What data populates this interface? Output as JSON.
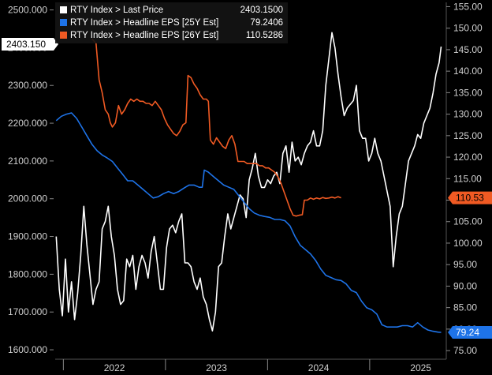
{
  "chart_data": {
    "type": "line",
    "x_labels": [
      "2022",
      "2023",
      "2024",
      "2025"
    ],
    "left_axis": {
      "ticks": [
        "1600.000",
        "1700.000",
        "1800.000",
        "1900.000",
        "2000.000",
        "2100.000",
        "2200.000",
        "2300.000",
        "2400.000",
        "2500.000"
      ],
      "range": [
        1575,
        2520
      ]
    },
    "right_axis": {
      "ticks": [
        "75.00",
        "80.00",
        "85.00",
        "90.00",
        "95.00",
        "100.00",
        "105.00",
        "110.00",
        "115.00",
        "120.00",
        "125.00",
        "130.00",
        "135.00",
        "140.00",
        "145.00",
        "150.00",
        "155.00"
      ],
      "range": [
        73,
        156
      ]
    },
    "x_range": [
      2021.92,
      2025.75
    ],
    "legend": [
      {
        "label": "RTY Index > Last Price",
        "value": "2403.1500",
        "color": "#ffffff"
      },
      {
        "label": "RTY Index > Headline EPS [25Y Est]",
        "value": "79.2406",
        "color": "#1e73e8"
      },
      {
        "label": "RTY Index > Headline EPS [26Y Est]",
        "value": "110.5286",
        "color": "#f05a23"
      }
    ],
    "flags": {
      "price": "2403.150",
      "eps25": "79.24",
      "eps26": "110.53"
    },
    "series": [
      {
        "axis": "left",
        "color": "#ffffff",
        "points": [
          [
            2021.93,
            1900
          ],
          [
            2021.96,
            1760
          ],
          [
            2021.99,
            1690
          ],
          [
            2022.02,
            1840
          ],
          [
            2022.05,
            1700
          ],
          [
            2022.08,
            1780
          ],
          [
            2022.11,
            1680
          ],
          [
            2022.14,
            1750
          ],
          [
            2022.17,
            1850
          ],
          [
            2022.2,
            1980
          ],
          [
            2022.23,
            1880
          ],
          [
            2022.26,
            1800
          ],
          [
            2022.29,
            1720
          ],
          [
            2022.32,
            1760
          ],
          [
            2022.35,
            1780
          ],
          [
            2022.38,
            1920
          ],
          [
            2022.41,
            1940
          ],
          [
            2022.44,
            1980
          ],
          [
            2022.47,
            1900
          ],
          [
            2022.5,
            1850
          ],
          [
            2022.53,
            1760
          ],
          [
            2022.56,
            1720
          ],
          [
            2022.59,
            1730
          ],
          [
            2022.62,
            1840
          ],
          [
            2022.65,
            1820
          ],
          [
            2022.68,
            1850
          ],
          [
            2022.71,
            1760
          ],
          [
            2022.74,
            1820
          ],
          [
            2022.77,
            1850
          ],
          [
            2022.8,
            1830
          ],
          [
            2022.83,
            1790
          ],
          [
            2022.86,
            1860
          ],
          [
            2022.89,
            1900
          ],
          [
            2022.92,
            1830
          ],
          [
            2022.95,
            1760
          ],
          [
            2022.98,
            1760
          ],
          [
            2023.01,
            1870
          ],
          [
            2023.04,
            1920
          ],
          [
            2023.07,
            1930
          ],
          [
            2023.1,
            1910
          ],
          [
            2023.13,
            1940
          ],
          [
            2023.16,
            1960
          ],
          [
            2023.19,
            1830
          ],
          [
            2023.22,
            1830
          ],
          [
            2023.25,
            1820
          ],
          [
            2023.28,
            1780
          ],
          [
            2023.31,
            1760
          ],
          [
            2023.34,
            1790
          ],
          [
            2023.37,
            1740
          ],
          [
            2023.4,
            1720
          ],
          [
            2023.43,
            1680
          ],
          [
            2023.46,
            1650
          ],
          [
            2023.49,
            1700
          ],
          [
            2023.52,
            1820
          ],
          [
            2023.55,
            1830
          ],
          [
            2023.58,
            1900
          ],
          [
            2023.61,
            1960
          ],
          [
            2023.64,
            1920
          ],
          [
            2023.67,
            1950
          ],
          [
            2023.7,
            1980
          ],
          [
            2023.73,
            2010
          ],
          [
            2023.76,
            2000
          ],
          [
            2023.79,
            1950
          ],
          [
            2023.82,
            2050
          ],
          [
            2023.85,
            2080
          ],
          [
            2023.88,
            2120
          ],
          [
            2023.91,
            2060
          ],
          [
            2023.94,
            2030
          ],
          [
            2023.97,
            2030
          ],
          [
            2024.0,
            2050
          ],
          [
            2024.03,
            2040
          ],
          [
            2024.06,
            2060
          ],
          [
            2024.09,
            2070
          ],
          [
            2024.12,
            2040
          ],
          [
            2024.15,
            2120
          ],
          [
            2024.18,
            2140
          ],
          [
            2024.21,
            2070
          ],
          [
            2024.24,
            2150
          ],
          [
            2024.27,
            2100
          ],
          [
            2024.3,
            2110
          ],
          [
            2024.33,
            2090
          ],
          [
            2024.36,
            2120
          ],
          [
            2024.39,
            2140
          ],
          [
            2024.42,
            2150
          ],
          [
            2024.45,
            2180
          ],
          [
            2024.48,
            2140
          ],
          [
            2024.51,
            2140
          ],
          [
            2024.54,
            2180
          ],
          [
            2024.57,
            2300
          ],
          [
            2024.6,
            2370
          ],
          [
            2024.63,
            2440
          ],
          [
            2024.66,
            2400
          ],
          [
            2024.69,
            2330
          ],
          [
            2024.72,
            2270
          ],
          [
            2024.75,
            2220
          ],
          [
            2024.78,
            2240
          ],
          [
            2024.81,
            2250
          ],
          [
            2024.84,
            2260
          ],
          [
            2024.87,
            2300
          ],
          [
            2024.9,
            2180
          ],
          [
            2024.93,
            2160
          ],
          [
            2024.96,
            2160
          ],
          [
            2024.99,
            2100
          ],
          [
            2025.02,
            2120
          ],
          [
            2025.05,
            2160
          ],
          [
            2025.08,
            2120
          ],
          [
            2025.11,
            2100
          ],
          [
            2025.14,
            2060
          ],
          [
            2025.17,
            2020
          ],
          [
            2025.2,
            1980
          ],
          [
            2025.23,
            1820
          ],
          [
            2025.26,
            1900
          ],
          [
            2025.29,
            1960
          ],
          [
            2025.32,
            1980
          ],
          [
            2025.35,
            2040
          ],
          [
            2025.38,
            2100
          ],
          [
            2025.41,
            2120
          ],
          [
            2025.44,
            2140
          ],
          [
            2025.47,
            2170
          ],
          [
            2025.5,
            2160
          ],
          [
            2025.53,
            2200
          ],
          [
            2025.56,
            2220
          ],
          [
            2025.59,
            2240
          ],
          [
            2025.62,
            2280
          ],
          [
            2025.65,
            2330
          ],
          [
            2025.68,
            2360
          ],
          [
            2025.7,
            2403
          ]
        ]
      },
      {
        "axis": "right",
        "color": "#1e73e8",
        "points": [
          [
            2021.93,
            128.5
          ],
          [
            2021.98,
            129.5
          ],
          [
            2022.03,
            130
          ],
          [
            2022.08,
            130.3
          ],
          [
            2022.13,
            129
          ],
          [
            2022.18,
            127
          ],
          [
            2022.23,
            125
          ],
          [
            2022.28,
            123
          ],
          [
            2022.33,
            121.5
          ],
          [
            2022.38,
            120.5
          ],
          [
            2022.43,
            119.8
          ],
          [
            2022.48,
            119
          ],
          [
            2022.53,
            117.5
          ],
          [
            2022.58,
            116
          ],
          [
            2022.63,
            114.5
          ],
          [
            2022.68,
            114.5
          ],
          [
            2022.73,
            113.5
          ],
          [
            2022.78,
            112.5
          ],
          [
            2022.83,
            111.5
          ],
          [
            2022.88,
            110.5
          ],
          [
            2022.93,
            110.8
          ],
          [
            2022.98,
            111.5
          ],
          [
            2023.03,
            112
          ],
          [
            2023.08,
            111.5
          ],
          [
            2023.13,
            112
          ],
          [
            2023.18,
            112.8
          ],
          [
            2023.23,
            113.5
          ],
          [
            2023.28,
            113.5
          ],
          [
            2023.33,
            113
          ],
          [
            2023.36,
            113
          ],
          [
            2023.38,
            117
          ],
          [
            2023.42,
            116.5
          ],
          [
            2023.47,
            115.5
          ],
          [
            2023.52,
            114.5
          ],
          [
            2023.57,
            113.5
          ],
          [
            2023.62,
            113
          ],
          [
            2023.67,
            112.5
          ],
          [
            2023.72,
            111
          ],
          [
            2023.77,
            109.5
          ],
          [
            2023.82,
            108
          ],
          [
            2023.87,
            107
          ],
          [
            2023.92,
            106.5
          ],
          [
            2023.97,
            106.2
          ],
          [
            2024.02,
            106
          ],
          [
            2024.07,
            105.5
          ],
          [
            2024.12,
            105.5
          ],
          [
            2024.17,
            105.2
          ],
          [
            2024.22,
            104
          ],
          [
            2024.27,
            101.5
          ],
          [
            2024.32,
            99.5
          ],
          [
            2024.37,
            98.5
          ],
          [
            2024.42,
            97.5
          ],
          [
            2024.47,
            96
          ],
          [
            2024.52,
            94
          ],
          [
            2024.57,
            92.5
          ],
          [
            2024.62,
            92
          ],
          [
            2024.67,
            91.5
          ],
          [
            2024.72,
            91.3
          ],
          [
            2024.77,
            90.5
          ],
          [
            2024.82,
            89
          ],
          [
            2024.87,
            88.5
          ],
          [
            2024.92,
            86.5
          ],
          [
            2024.97,
            85
          ],
          [
            2025.02,
            84.5
          ],
          [
            2025.07,
            83.5
          ],
          [
            2025.12,
            81
          ],
          [
            2025.17,
            80.5
          ],
          [
            2025.22,
            80.5
          ],
          [
            2025.27,
            80.5
          ],
          [
            2025.32,
            80.8
          ],
          [
            2025.37,
            80.8
          ],
          [
            2025.42,
            80.5
          ],
          [
            2025.47,
            81.5
          ],
          [
            2025.52,
            80.5
          ],
          [
            2025.57,
            79.8
          ],
          [
            2025.62,
            79.5
          ],
          [
            2025.67,
            79.3
          ],
          [
            2025.7,
            79.24
          ]
        ]
      },
      {
        "axis": "right",
        "color": "#f05a23",
        "points": [
          [
            2022.28,
            147.5
          ],
          [
            2022.32,
            146.5
          ],
          [
            2022.35,
            138
          ],
          [
            2022.38,
            135
          ],
          [
            2022.41,
            131
          ],
          [
            2022.44,
            130
          ],
          [
            2022.46,
            128
          ],
          [
            2022.48,
            127
          ],
          [
            2022.51,
            128
          ],
          [
            2022.54,
            132
          ],
          [
            2022.57,
            130
          ],
          [
            2022.6,
            131
          ],
          [
            2022.63,
            132.5
          ],
          [
            2022.66,
            133.5
          ],
          [
            2022.69,
            133
          ],
          [
            2022.72,
            133.5
          ],
          [
            2022.75,
            133
          ],
          [
            2022.78,
            133
          ],
          [
            2022.81,
            132.5
          ],
          [
            2022.84,
            132.5
          ],
          [
            2022.87,
            132
          ],
          [
            2022.9,
            133
          ],
          [
            2022.93,
            132
          ],
          [
            2022.96,
            131
          ],
          [
            2022.99,
            129
          ],
          [
            2023.02,
            127.5
          ],
          [
            2023.05,
            126.5
          ],
          [
            2023.08,
            125.5
          ],
          [
            2023.11,
            125
          ],
          [
            2023.14,
            126
          ],
          [
            2023.17,
            127.5
          ],
          [
            2023.2,
            128
          ],
          [
            2023.22,
            139
          ],
          [
            2023.25,
            138.5
          ],
          [
            2023.28,
            137
          ],
          [
            2023.31,
            136
          ],
          [
            2023.34,
            134.5
          ],
          [
            2023.37,
            133.5
          ],
          [
            2023.4,
            133.5
          ],
          [
            2023.42,
            133
          ],
          [
            2023.44,
            124
          ],
          [
            2023.47,
            123
          ],
          [
            2023.5,
            124.5
          ],
          [
            2023.53,
            123.5
          ],
          [
            2023.56,
            122.5
          ],
          [
            2023.59,
            122
          ],
          [
            2023.62,
            124
          ],
          [
            2023.65,
            125
          ],
          [
            2023.68,
            123
          ],
          [
            2023.71,
            119
          ],
          [
            2023.74,
            119
          ],
          [
            2023.77,
            119
          ],
          [
            2023.8,
            118.5
          ],
          [
            2023.83,
            118.5
          ],
          [
            2023.86,
            118.5
          ],
          [
            2023.89,
            118.5
          ],
          [
            2023.92,
            118
          ],
          [
            2023.95,
            118
          ],
          [
            2023.98,
            117.5
          ],
          [
            2024.01,
            117.5
          ],
          [
            2024.04,
            117
          ],
          [
            2024.07,
            116.5
          ],
          [
            2024.1,
            115.5
          ],
          [
            2024.13,
            114
          ],
          [
            2024.16,
            112
          ],
          [
            2024.19,
            110
          ],
          [
            2024.22,
            108
          ],
          [
            2024.25,
            106.5
          ],
          [
            2024.28,
            106.3
          ],
          [
            2024.31,
            106.5
          ],
          [
            2024.34,
            106.6
          ],
          [
            2024.36,
            110
          ],
          [
            2024.39,
            110
          ],
          [
            2024.42,
            110.5
          ],
          [
            2024.45,
            110.2
          ],
          [
            2024.48,
            110.5
          ],
          [
            2024.51,
            110.3
          ],
          [
            2024.54,
            110.6
          ],
          [
            2024.57,
            110.4
          ],
          [
            2024.6,
            110.5
          ],
          [
            2024.63,
            110.7
          ],
          [
            2024.66,
            110.5
          ],
          [
            2024.69,
            110.8
          ],
          [
            2024.72,
            110.53
          ]
        ]
      }
    ]
  }
}
